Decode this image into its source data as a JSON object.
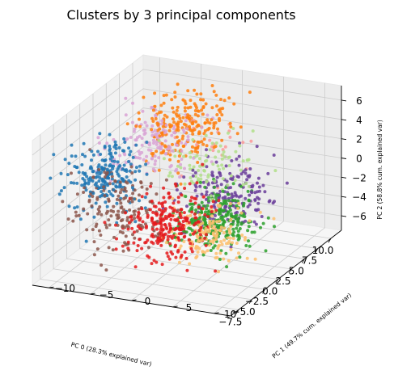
{
  "chart_data": {
    "type": "scatter",
    "title": "Clusters by 3 principal components",
    "xlabel": "PC 0 (28.3% explained var)",
    "ylabel": "PC 1 (49.7% cum. explained var)",
    "zlabel": "PC 2 (58.8% cum. explained var)",
    "xticks": [
      "10.0",
      "7.5",
      "5.0",
      "2.5",
      "0.0",
      "−2.5",
      "−5.0",
      "−7.5"
    ],
    "yticks": [
      "−10",
      "−5",
      "0",
      "5",
      "10"
    ],
    "zticks": [
      "6",
      "4",
      "2",
      "0",
      "−2",
      "−4",
      "−6"
    ],
    "xlim": [
      -9,
      12
    ],
    "ylim": [
      -12,
      12
    ],
    "zlim": [
      -7.5,
      7.5
    ],
    "grid": true,
    "series": [
      {
        "color": "#ff7f0e",
        "center": [
          6,
          -3,
          4
        ],
        "spread": [
          2.2,
          2.5,
          1.6
        ],
        "count": 230
      },
      {
        "color": "#d9a3d5",
        "center": [
          3,
          -5,
          3
        ],
        "spread": [
          2.0,
          2.5,
          1.4
        ],
        "count": 150
      },
      {
        "color": "#1f77b4",
        "center": [
          -3,
          -7,
          2
        ],
        "spread": [
          1.8,
          2.2,
          1.6
        ],
        "count": 230
      },
      {
        "color": "#8c564b",
        "center": [
          -5,
          -4,
          0
        ],
        "spread": [
          1.8,
          2.6,
          2.0
        ],
        "count": 170
      },
      {
        "color": "#e41a1c",
        "center": [
          -5,
          2,
          -1
        ],
        "spread": [
          1.6,
          2.4,
          1.6
        ],
        "count": 260
      },
      {
        "color": "#2ca02c",
        "center": [
          1,
          4,
          -3
        ],
        "spread": [
          2.0,
          2.0,
          1.3
        ],
        "count": 270
      },
      {
        "color": "#6a3d9a",
        "center": [
          5,
          3,
          -2
        ],
        "spread": [
          2.2,
          2.5,
          1.6
        ],
        "count": 190
      },
      {
        "color": "#fdbf6f",
        "center": [
          -2,
          5,
          -3
        ],
        "spread": [
          1.6,
          2.2,
          1.3
        ],
        "count": 150
      },
      {
        "color": "#b2df8a",
        "center": [
          4,
          1,
          1
        ],
        "spread": [
          2.0,
          2.5,
          1.5
        ],
        "count": 90
      },
      {
        "color": "#fb9a99",
        "center": [
          9,
          -2,
          1
        ],
        "spread": [
          1.6,
          3.0,
          2.0
        ],
        "count": 25
      }
    ]
  }
}
